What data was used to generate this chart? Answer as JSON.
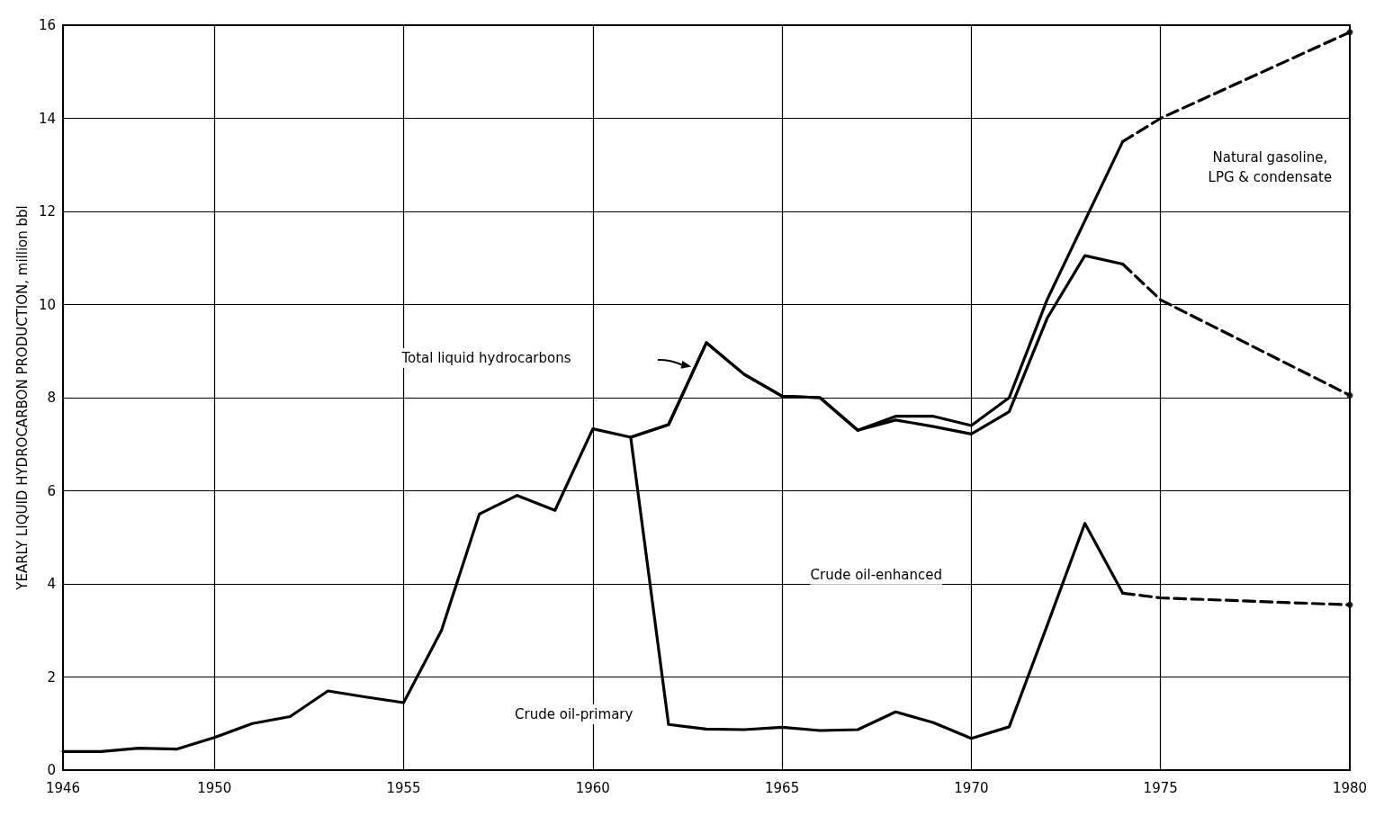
{
  "chart_data": {
    "type": "line",
    "ylabel": "YEARLY LIQUID HYDROCARBON PRODUCTION, million bbl",
    "xlim": [
      1946,
      1980
    ],
    "xticks": [
      1946,
      1950,
      1955,
      1960,
      1965,
      1970,
      1975,
      1980
    ],
    "ylim": [
      0,
      16
    ],
    "yticks": [
      0,
      2,
      4,
      6,
      8,
      10,
      12,
      14,
      16
    ],
    "grid": true,
    "marker": "none",
    "series": [
      {
        "color": "#000000",
        "line_style": "solid",
        "x": [
          1946,
          1947,
          1948,
          1949,
          1950,
          1951,
          1952,
          1953,
          1954,
          1955,
          1956,
          1957,
          1958,
          1959,
          1960,
          1961,
          1962,
          1963,
          1964,
          1965,
          1966,
          1967,
          1968,
          1969,
          1970,
          1971,
          1972,
          1973,
          1974
        ],
        "values": [
          0.4,
          0.4,
          0.47,
          0.45,
          0.7,
          1.0,
          1.15,
          1.7,
          1.57,
          1.45,
          3.0,
          5.5,
          5.9,
          5.58,
          7.33,
          7.15,
          7.42,
          9.18,
          8.5,
          8.03,
          8.0,
          7.3,
          7.6,
          7.6,
          7.4,
          8.0,
          10.1,
          11.8,
          13.5
        ]
      },
      {
        "color": "#000000",
        "line_style": "dashed",
        "x": [
          1974,
          1975,
          1980
        ],
        "values": [
          13.5,
          14.0,
          15.85
        ]
      },
      {
        "color": "#000000",
        "line_style": "solid",
        "x": [
          1961,
          1962,
          1963,
          1964,
          1965,
          1966,
          1967,
          1968,
          1969,
          1970,
          1971,
          1972,
          1973,
          1974
        ],
        "values": [
          7.15,
          7.42,
          9.18,
          8.5,
          8.03,
          8.0,
          7.3,
          7.52,
          7.38,
          7.22,
          7.7,
          9.7,
          11.05,
          10.87
        ]
      },
      {
        "color": "#000000",
        "line_style": "dashed",
        "x": [
          1974,
          1975,
          1980
        ],
        "values": [
          10.87,
          10.1,
          8.05
        ]
      },
      {
        "color": "#000000",
        "line_style": "solid",
        "x": [
          1961,
          1962,
          1963,
          1964,
          1965,
          1966,
          1967,
          1968,
          1969,
          1970,
          1971,
          1972,
          1973,
          1974
        ],
        "values": [
          7.15,
          0.98,
          0.88,
          0.87,
          0.92,
          0.85,
          0.87,
          1.25,
          1.02,
          0.68,
          0.93,
          3.1,
          5.3,
          3.8
        ]
      },
      {
        "color": "#000000",
        "line_style": "dashed",
        "x": [
          1974,
          1975,
          1980
        ],
        "values": [
          3.8,
          3.7,
          3.55
        ]
      },
      {
        "type": "scatter",
        "marker": "circle",
        "color": "#000000",
        "x": [
          1980,
          1980,
          1980
        ],
        "values": [
          15.85,
          8.05,
          3.55
        ]
      }
    ],
    "annotations": [
      "Total liquid hydrocarbons",
      "Natural gasoline,\nLPG & condensate",
      "Crude oil-enhanced",
      "Crude oil-primary"
    ]
  }
}
